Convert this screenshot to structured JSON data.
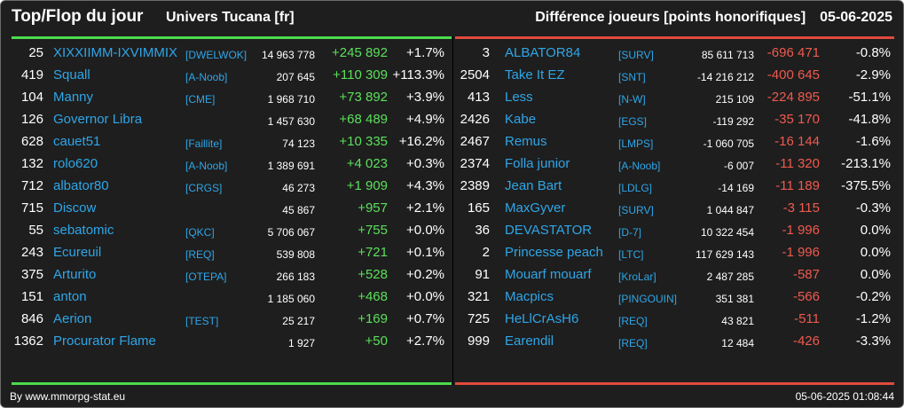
{
  "header": {
    "title": "Top/Flop du jour",
    "server": "Univers Tucana [fr]",
    "subtitle": "Différence joueurs [points honorifiques]",
    "date": "05-06-2025"
  },
  "colors": {
    "background": "#1e1e1e",
    "accent_top": "#4cdb4c",
    "accent_flop": "#e04a3e",
    "link": "#2fa6e8",
    "positive": "#5be05b",
    "negative": "#ee5a4f"
  },
  "top": [
    {
      "rank": "25",
      "name": "XIXXIIMM-IXVIMMIX",
      "tag": "[DWELWOK]",
      "total": "14 963 778",
      "diff": "+245 892",
      "pct": "+1.7%"
    },
    {
      "rank": "419",
      "name": "Squall",
      "tag": "[A-Noob]",
      "total": "207 645",
      "diff": "+110 309",
      "pct": "+113.3%"
    },
    {
      "rank": "104",
      "name": "Manny",
      "tag": "[CME]",
      "total": "1 968 710",
      "diff": "+73 892",
      "pct": "+3.9%"
    },
    {
      "rank": "126",
      "name": "Governor Libra",
      "tag": "",
      "total": "1 457 630",
      "diff": "+68 489",
      "pct": "+4.9%"
    },
    {
      "rank": "628",
      "name": "cauet51",
      "tag": "[Faillite]",
      "total": "74 123",
      "diff": "+10 335",
      "pct": "+16.2%"
    },
    {
      "rank": "132",
      "name": "rolo620",
      "tag": "[A-Noob]",
      "total": "1 389 691",
      "diff": "+4 023",
      "pct": "+0.3%"
    },
    {
      "rank": "712",
      "name": "albator80",
      "tag": "[CRGS]",
      "total": "46 273",
      "diff": "+1 909",
      "pct": "+4.3%"
    },
    {
      "rank": "715",
      "name": "Discow",
      "tag": "",
      "total": "45 867",
      "diff": "+957",
      "pct": "+2.1%"
    },
    {
      "rank": "55",
      "name": "sebatomic",
      "tag": "[QKC]",
      "total": "5 706 067",
      "diff": "+755",
      "pct": "+0.0%"
    },
    {
      "rank": "243",
      "name": "Ecureuil",
      "tag": "[REQ]",
      "total": "539 808",
      "diff": "+721",
      "pct": "+0.1%"
    },
    {
      "rank": "375",
      "name": "Arturito",
      "tag": "[OTEPA]",
      "total": "266 183",
      "diff": "+528",
      "pct": "+0.2%"
    },
    {
      "rank": "151",
      "name": "anton",
      "tag": "",
      "total": "1 185 060",
      "diff": "+468",
      "pct": "+0.0%"
    },
    {
      "rank": "846",
      "name": "Aerion",
      "tag": "[TEST]",
      "total": "25 217",
      "diff": "+169",
      "pct": "+0.7%"
    },
    {
      "rank": "1362",
      "name": "Procurator Flame",
      "tag": "",
      "total": "1 927",
      "diff": "+50",
      "pct": "+2.7%"
    }
  ],
  "flop": [
    {
      "rank": "3",
      "name": "ALBATOR84",
      "tag": "[SURV]",
      "total": "85 611 713",
      "diff": "-696 471",
      "pct": "-0.8%"
    },
    {
      "rank": "2504",
      "name": "Take It EZ",
      "tag": "[SNT]",
      "total": "-14 216 212",
      "diff": "-400 645",
      "pct": "-2.9%"
    },
    {
      "rank": "413",
      "name": "Less",
      "tag": "[N-W]",
      "total": "215 109",
      "diff": "-224 895",
      "pct": "-51.1%"
    },
    {
      "rank": "2426",
      "name": "Kabe",
      "tag": "[EGS]",
      "total": "-119 292",
      "diff": "-35 170",
      "pct": "-41.8%"
    },
    {
      "rank": "2467",
      "name": "Remus",
      "tag": "[LMPS]",
      "total": "-1 060 705",
      "diff": "-16 144",
      "pct": "-1.6%"
    },
    {
      "rank": "2374",
      "name": "Folla junior",
      "tag": "[A-Noob]",
      "total": "-6 007",
      "diff": "-11 320",
      "pct": "-213.1%"
    },
    {
      "rank": "2389",
      "name": "Jean Bart",
      "tag": "[LDLG]",
      "total": "-14 169",
      "diff": "-11 189",
      "pct": "-375.5%"
    },
    {
      "rank": "165",
      "name": "MaxGyver",
      "tag": "[SURV]",
      "total": "1 044 847",
      "diff": "-3 115",
      "pct": "-0.3%"
    },
    {
      "rank": "36",
      "name": "DEVASTATOR",
      "tag": "[D-7]",
      "total": "10 322 454",
      "diff": "-1 996",
      "pct": "0.0%"
    },
    {
      "rank": "2",
      "name": "Princesse peach",
      "tag": "[LTC]",
      "total": "117 629 143",
      "diff": "-1 996",
      "pct": "0.0%"
    },
    {
      "rank": "91",
      "name": "Mouarf mouarf",
      "tag": "[KroLar]",
      "total": "2 487 285",
      "diff": "-587",
      "pct": "0.0%"
    },
    {
      "rank": "321",
      "name": "Macpics",
      "tag": "[PINGOUIN]",
      "total": "351 381",
      "diff": "-566",
      "pct": "-0.2%"
    },
    {
      "rank": "725",
      "name": "HeLlCrAsH6",
      "tag": "[REQ]",
      "total": "43 821",
      "diff": "-511",
      "pct": "-1.2%"
    },
    {
      "rank": "999",
      "name": "Earendil",
      "tag": "[REQ]",
      "total": "12 484",
      "diff": "-426",
      "pct": "-3.3%"
    }
  ],
  "footer": {
    "source": "By www.mmorpg-stat.eu",
    "timestamp": "05-06-2025 01:08:44"
  }
}
